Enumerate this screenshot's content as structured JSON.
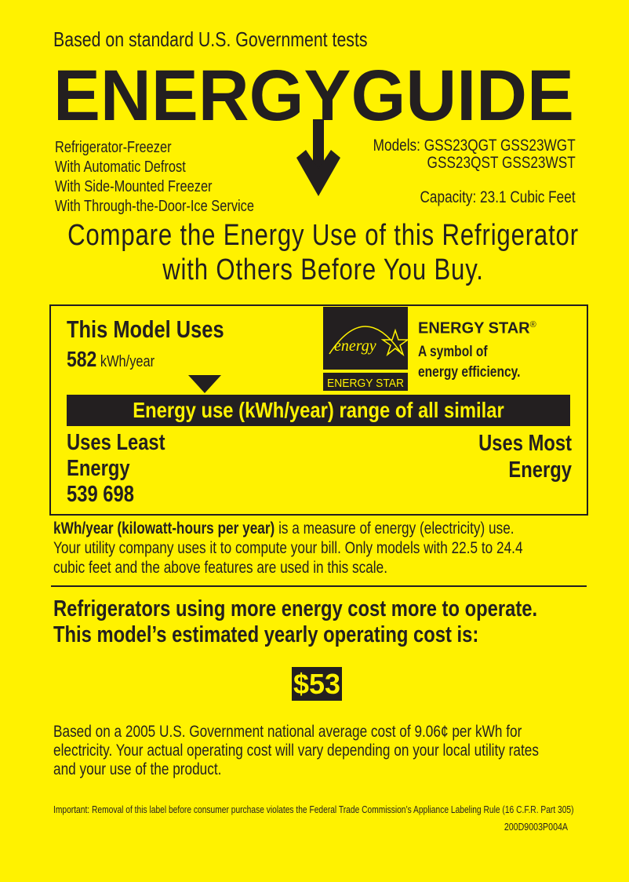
{
  "header": {
    "tests_note": "Based on standard U.S. Government tests",
    "logo_text": "ENERGYGUIDE"
  },
  "product": {
    "features": [
      "Refrigerator-Freezer",
      "With Automatic Defrost",
      "With Side-Mounted Freezer",
      "With Through-the-Door-Ice Service"
    ],
    "models_label": "Models:",
    "models_line1": "GSS23QGT GSS23WGT",
    "models_line2": "GSS23QST GSS23WST",
    "capacity": "Capacity: 23.1 Cubic Feet"
  },
  "headline": {
    "line1": "Compare the Energy Use of this Refrigerator",
    "line2": "with Others Before You Buy."
  },
  "usage": {
    "title": "This Model Uses",
    "value": "582",
    "unit": "kWh/year",
    "range_bar": "Energy use (kWh/year) range of all similar models",
    "least_line1": "Uses Least",
    "least_line2": "Energy",
    "range_values": "539 698",
    "most_line1": "Uses Most",
    "most_line2": "Energy",
    "range_min": 539,
    "range_max": 698,
    "model_value": 582
  },
  "energy_star": {
    "title": "ENERGY STAR",
    "reg": "®",
    "desc_line1": "A symbol of",
    "desc_line2": "energy efficiency.",
    "logo_script": "energy",
    "logo_caption": "ENERGY STAR"
  },
  "explanation": {
    "bold": "kWh/year (kilowatt-hours per year)",
    "line1_rest": " is a measure of energy (electricity) use.",
    "line2": "Your utility company uses it to compute your bill. Only models with 22.5 to 24.4",
    "line3": "cubic feet and the above features are used in this scale."
  },
  "cost": {
    "line1": "Refrigerators using more energy cost more to operate.",
    "line2": "This model’s estimated yearly operating cost is:",
    "amount": "$53",
    "note1": "Based on a 2005 U.S. Government national average cost of 9.06¢ per kWh for",
    "note2": "electricity. Your actual operating cost will vary depending on your local utility rates",
    "note3": "and your use of the product."
  },
  "footer": {
    "legal": "Important: Removal of this label before consumer purchase violates the Federal Trade Commission’s Appliance Labeling Rule (16 C.F.R. Part 305)",
    "code": "200D9003P004A"
  },
  "colors": {
    "background": "#fff200",
    "ink": "#231f20"
  }
}
